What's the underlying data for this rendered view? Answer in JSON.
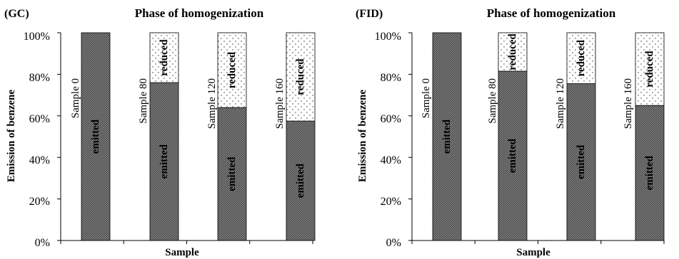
{
  "chart_data": [
    {
      "type": "bar",
      "stacked": true,
      "panel_label": "(GC)",
      "title": "Phase of homogenization",
      "xlabel": "Sample",
      "ylabel": "Emission of benzene",
      "ylim": [
        0,
        100
      ],
      "yticks": [
        "0%",
        "20%",
        "40%",
        "60%",
        "80%",
        "100%"
      ],
      "categories": [
        "Sample 0",
        "Sample 80",
        "Sample 120",
        "Sample 160"
      ],
      "series": [
        {
          "name": "emitted",
          "values": [
            100,
            76,
            64,
            57.5
          ],
          "fill": "#7a7a7a"
        },
        {
          "name": "reduced",
          "values": [
            0,
            24,
            36,
            42.5
          ],
          "fill": "#ffffff"
        }
      ]
    },
    {
      "type": "bar",
      "stacked": true,
      "panel_label": "(FID)",
      "title": "Phase of homogenization",
      "xlabel": "Sample",
      "ylabel": "Emission of benzene",
      "ylim": [
        0,
        100
      ],
      "yticks": [
        "0%",
        "20%",
        "40%",
        "60%",
        "80%",
        "100%"
      ],
      "categories": [
        "Sample 0",
        "Sample 80",
        "Sample 120",
        "Sample 160"
      ],
      "series": [
        {
          "name": "emitted",
          "values": [
            100,
            81.5,
            75.5,
            65
          ],
          "fill": "#7a7a7a"
        },
        {
          "name": "reduced",
          "values": [
            0,
            18.5,
            24.5,
            35
          ],
          "fill": "#ffffff"
        }
      ]
    }
  ]
}
